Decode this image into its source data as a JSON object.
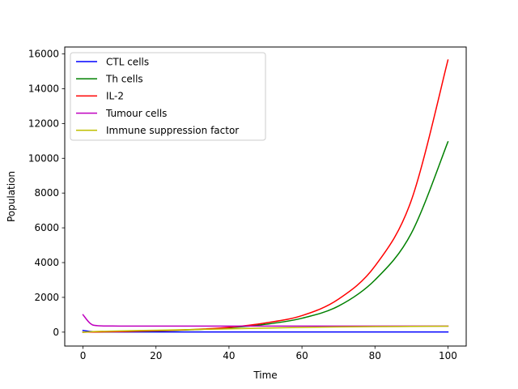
{
  "chart_data": {
    "type": "line",
    "title": "",
    "xlabel": "Time",
    "ylabel": "Population",
    "xlim": [
      -5,
      105
    ],
    "ylim": [
      -800,
      16400
    ],
    "xticks": [
      0,
      20,
      40,
      60,
      80,
      100
    ],
    "xtick_labels": [
      "0",
      "20",
      "40",
      "60",
      "80",
      "100"
    ],
    "yticks": [
      0,
      2000,
      4000,
      6000,
      8000,
      10000,
      12000,
      14000,
      16000
    ],
    "ytick_labels": [
      "0",
      "2000",
      "4000",
      "6000",
      "8000",
      "10000",
      "12000",
      "14000",
      "16000"
    ],
    "grid": false,
    "legend_position": "upper-left",
    "x": [
      0,
      2,
      4,
      10,
      20,
      30,
      40,
      50,
      60,
      70,
      80,
      90,
      100
    ],
    "series": [
      {
        "name": "CTL cells",
        "color": "#0000ff",
        "values": [
          100,
          40,
          20,
          10,
          10,
          10,
          10,
          10,
          10,
          10,
          10,
          10,
          10
        ]
      },
      {
        "name": "Th cells",
        "color": "#008000",
        "values": [
          0,
          5,
          10,
          30,
          70,
          140,
          250,
          450,
          800,
          1500,
          3000,
          5700,
          10950
        ]
      },
      {
        "name": "IL-2",
        "color": "#ff0000",
        "values": [
          0,
          5,
          10,
          30,
          80,
          150,
          280,
          530,
          950,
          1900,
          3800,
          7600,
          15650
        ]
      },
      {
        "name": "Tumour cells",
        "color": "#bf00bf",
        "values": [
          1000,
          500,
          370,
          350,
          350,
          350,
          350,
          350,
          350,
          350,
          350,
          350,
          350
        ]
      },
      {
        "name": "Immune suppression factor",
        "color": "#bfbf00",
        "values": [
          0,
          20,
          40,
          70,
          110,
          150,
          190,
          230,
          270,
          300,
          320,
          330,
          340
        ]
      }
    ]
  }
}
